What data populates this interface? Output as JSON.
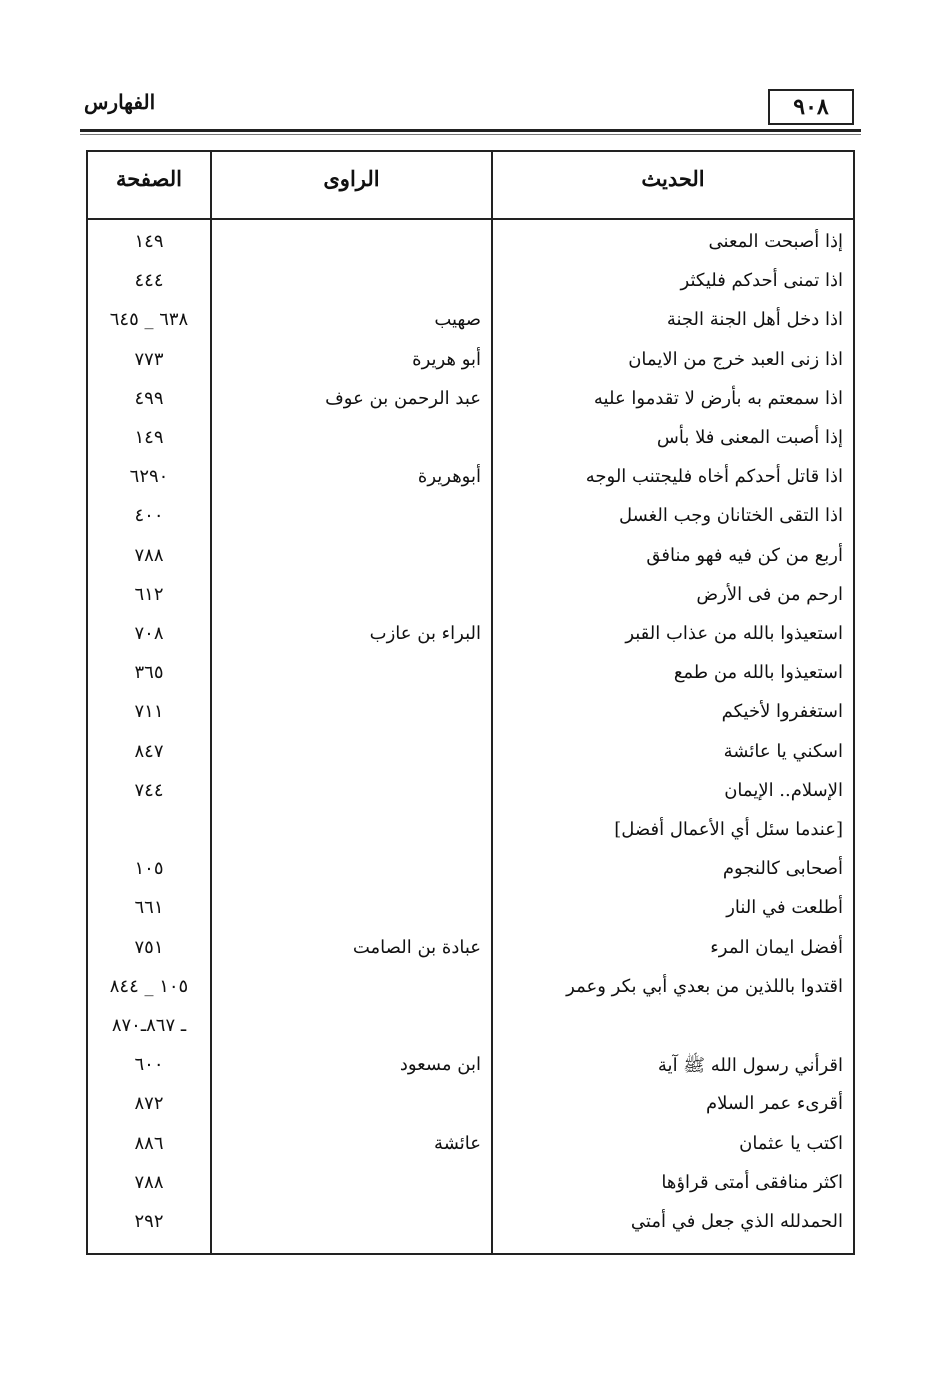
{
  "header": {
    "page_number": "٩٠٨",
    "running_title": "الفهارس"
  },
  "table": {
    "columns": {
      "hadith": "الحديث",
      "narrator": "الراوى",
      "page": "الصفحة"
    },
    "rows": [
      {
        "hadith": "إذا أصبحت المعنى",
        "narrator": "",
        "page": "١٤٩"
      },
      {
        "hadith": "اذا تمنى أحدكم فليكثر",
        "narrator": "",
        "page": "٤٤٤"
      },
      {
        "hadith": "اذا دخل أهل الجنة الجنة",
        "narrator": "صهيب",
        "page": "٦٣٨ _ ٦٤٥"
      },
      {
        "hadith": "اذا زنى العبد خرج من الايمان",
        "narrator": "أبو هريرة",
        "page": "٧٧٣"
      },
      {
        "hadith": "اذا سمعتم به بأرض لا تقدموا عليه",
        "narrator": "عبد الرحمن بن عوف",
        "page": "٤٩٩"
      },
      {
        "hadith": "إذا أصبت المعنى فلا بأس",
        "narrator": "",
        "page": "١٤٩"
      },
      {
        "hadith": "اذا قاتل أحدكم أخاه فليجتنب الوجه",
        "narrator": "أبوهريرة",
        "page": "٦٢٩٠"
      },
      {
        "hadith": "اذا التقى الختانان وجب الغسل",
        "narrator": "",
        "page": "٤٠٠"
      },
      {
        "hadith": "أربع من كن فيه فهو منافق",
        "narrator": "",
        "page": "٧٨٨"
      },
      {
        "hadith": "ارحم من فى الأرض",
        "narrator": "",
        "page": "٦١٢"
      },
      {
        "hadith": "استعيذوا بالله من عذاب القبر",
        "narrator": "البراء بن عازب",
        "page": "٧٠٨"
      },
      {
        "hadith": "استعيذوا بالله من طمع",
        "narrator": "",
        "page": "٣٦٥"
      },
      {
        "hadith": "استغفروا لأخيكم",
        "narrator": "",
        "page": "٧١١"
      },
      {
        "hadith": "اسكني يا عائشة",
        "narrator": "",
        "page": "٨٤٧"
      },
      {
        "hadith": "الإسلام.. الإيمان",
        "narrator": "",
        "page": "٧٤٤"
      },
      {
        "hadith": "[عندما سئل أي الأعمال أفضل]",
        "narrator": "",
        "page": ""
      },
      {
        "hadith": "أصحابى كالنجوم",
        "narrator": "",
        "page": "١٠٥"
      },
      {
        "hadith": "أطلعت في النار",
        "narrator": "",
        "page": "٦٦١"
      },
      {
        "hadith": "أفضل ايمان المرء",
        "narrator": "عبادة بن الصامت",
        "page": "٧٥١"
      },
      {
        "hadith": "اقتدوا باللذين من بعدي أبي بكر وعمر",
        "narrator": "",
        "page": "١٠٥ _ ٨٤٤"
      },
      {
        "hadith": "",
        "narrator": "",
        "page": "ـ ٨٦٧ـ٨٧٠"
      },
      {
        "hadith": "اقرأني رسول الله ﷺ آية",
        "narrator": "ابن مسعود",
        "page": "٦٠٠"
      },
      {
        "hadith": "أقرىء عمر السلام",
        "narrator": "",
        "page": "٨٧٢"
      },
      {
        "hadith": "اكتب يا عثمان",
        "narrator": "عائشة",
        "page": "٨٨٦"
      },
      {
        "hadith": "اكثر منافقى أمتى قراؤها",
        "narrator": "",
        "page": "٧٨٨"
      },
      {
        "hadith": "الحمدلله الذي جعل في أمتي",
        "narrator": "",
        "page": "٢٩٢"
      }
    ]
  }
}
